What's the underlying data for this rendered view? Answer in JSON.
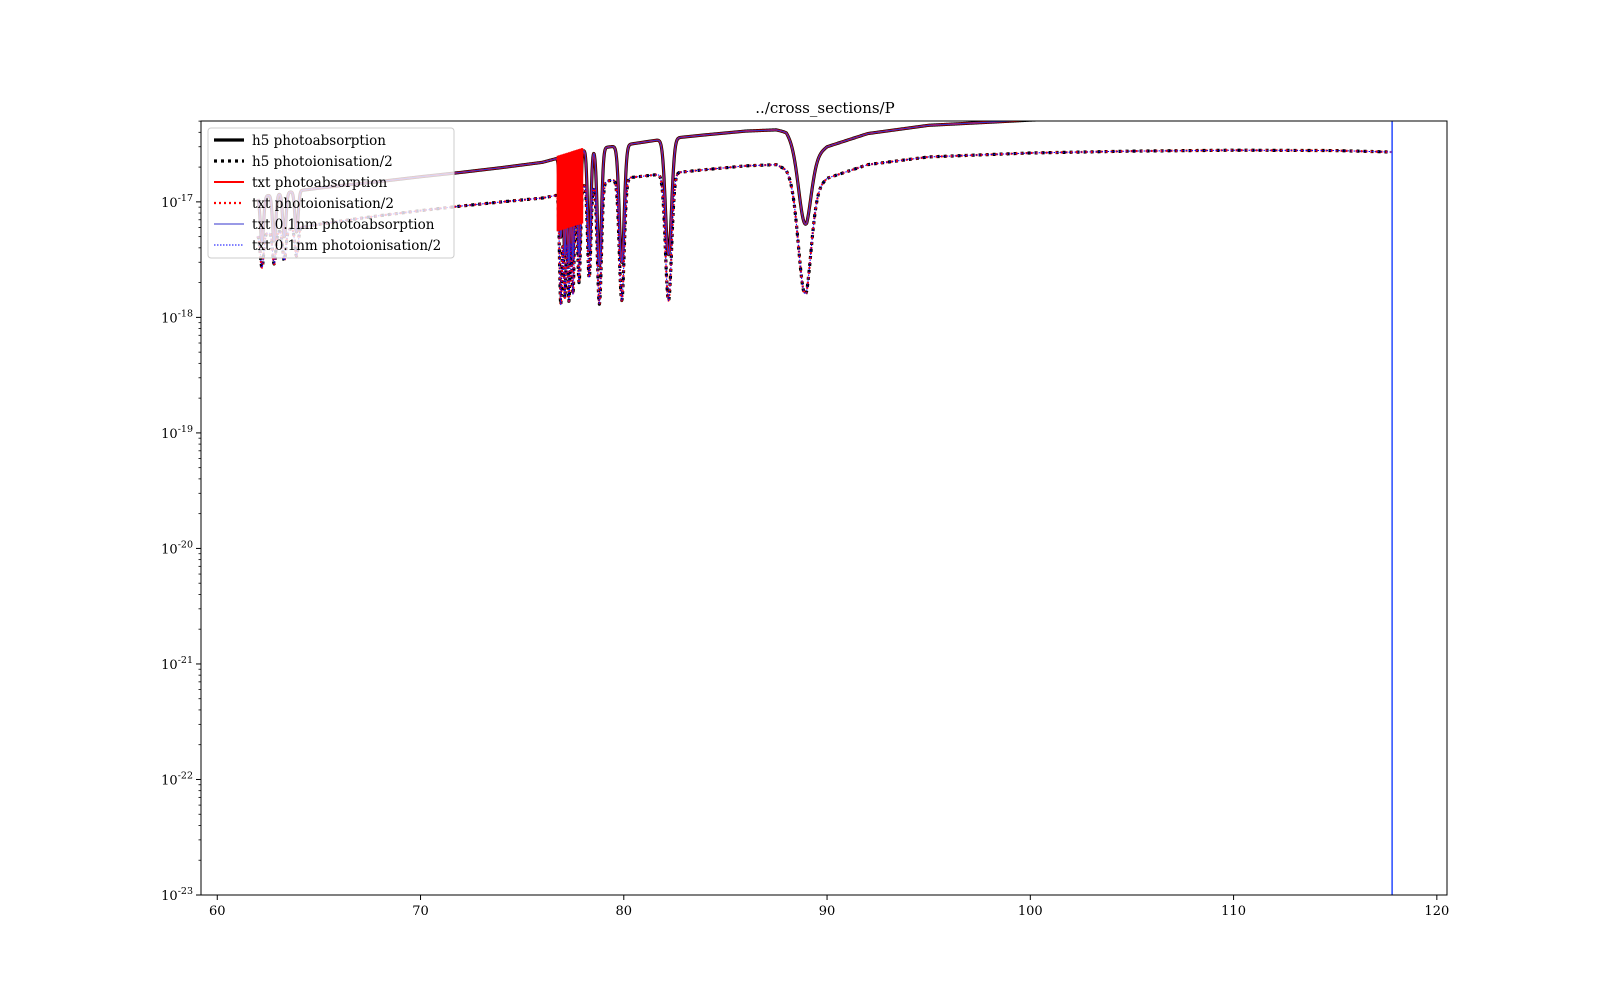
{
  "chart_data": {
    "type": "line",
    "title": "../cross_sections/P",
    "xlabel": "",
    "ylabel": "",
    "xlim": [
      59.2,
      120.5
    ],
    "ylim_log10": [
      -23,
      -16.3
    ],
    "yscale": "log",
    "grid": false,
    "legend_placement": "top-left",
    "x_ticks": [
      60,
      70,
      80,
      90,
      100,
      110,
      120
    ],
    "y_ticks": [
      {
        "base": "10",
        "exp": "-23",
        "log10": -23
      },
      {
        "base": "10",
        "exp": "-22",
        "log10": -22
      },
      {
        "base": "10",
        "exp": "-21",
        "log10": -21
      },
      {
        "base": "10",
        "exp": "-20",
        "log10": -20
      },
      {
        "base": "10",
        "exp": "-19",
        "log10": -19
      },
      {
        "base": "10",
        "exp": "-18",
        "log10": -18
      },
      {
        "base": "10",
        "exp": "-17",
        "log10": -17
      }
    ],
    "series": [
      {
        "name": "h5 photoabsorption",
        "color": "#000000",
        "style": "solid",
        "kind": "absorption"
      },
      {
        "name": "h5 photoionisation/2",
        "color": "#000000",
        "style": "dotted",
        "kind": "ionisation"
      },
      {
        "name": "txt photoabsorption",
        "color": "#ff0000",
        "style": "solid",
        "kind": "absorption"
      },
      {
        "name": "txt photoionisation/2",
        "color": "#ff0000",
        "style": "dotted",
        "kind": "ionisation"
      },
      {
        "name": "txt 0.1nm photoabsorption",
        "color": "#3333cc",
        "style": "solid",
        "kind": "absorption"
      },
      {
        "name": "txt 0.1nm photoionisation/2",
        "color": "#0000ff",
        "style": "dotted",
        "kind": "ionisation"
      }
    ],
    "absorption_base": {
      "x": [
        62,
        64,
        66,
        68,
        70,
        72,
        74,
        76,
        76.8,
        78,
        80,
        82,
        84,
        86,
        87.5,
        88,
        88.5,
        89,
        90,
        92,
        95,
        100,
        105,
        110,
        115,
        117.8
      ],
      "y": [
        1.1e-17,
        1.25e-17,
        1.38e-17,
        1.5e-17,
        1.65e-17,
        1.8e-17,
        1.98e-17,
        2.2e-17,
        2.4e-17,
        2.8e-17,
        3.1e-17,
        3.5e-17,
        3.8e-17,
        4.1e-17,
        4.2e-17,
        4e-17,
        3e-17,
        2.2e-17,
        3e-17,
        3.9e-17,
        4.6e-17,
        5.1e-17,
        5.45e-17,
        5.55e-17,
        5.5e-17,
        5.3e-17
      ]
    },
    "ionisation_base": {
      "x": [
        62,
        64,
        66,
        68,
        70,
        72,
        74,
        76,
        76.8,
        78,
        80,
        82,
        84,
        86,
        87.5,
        88,
        88.5,
        89,
        90,
        92,
        95,
        100,
        105,
        110,
        115,
        117.8
      ],
      "y": [
        5.2e-18,
        6e-18,
        6.8e-18,
        7.6e-18,
        8.4e-18,
        9.2e-18,
        1e-17,
        1.08e-17,
        1.15e-17,
        1.4e-17,
        1.6e-17,
        1.75e-17,
        1.9e-17,
        2.05e-17,
        2.1e-17,
        1.9e-17,
        1.4e-17,
        1.1e-17,
        1.6e-17,
        2.1e-17,
        2.45e-17,
        2.65e-17,
        2.75e-17,
        2.8e-17,
        2.78e-17,
        2.7e-17
      ]
    },
    "absorption_dips": [
      {
        "x": 62.2,
        "min": 4.5e-18,
        "w": 0.08
      },
      {
        "x": 62.8,
        "min": 4.6e-18,
        "w": 0.08
      },
      {
        "x": 63.3,
        "min": 5e-18,
        "w": 0.08
      },
      {
        "x": 63.9,
        "min": 5.5e-18,
        "w": 0.08
      },
      {
        "x": 76.9,
        "min": 5e-18,
        "w": 0.06
      },
      {
        "x": 77.1,
        "min": 3.5e-18,
        "w": 0.06
      },
      {
        "x": 77.3,
        "min": 3e-18,
        "w": 0.06
      },
      {
        "x": 77.5,
        "min": 3.2e-18,
        "w": 0.06
      },
      {
        "x": 77.8,
        "min": 3.5e-18,
        "w": 0.07
      },
      {
        "x": 78.3,
        "min": 3.8e-18,
        "w": 0.08
      },
      {
        "x": 78.8,
        "min": 2.8e-18,
        "w": 0.1
      },
      {
        "x": 79.9,
        "min": 3e-18,
        "w": 0.12
      },
      {
        "x": 82.2,
        "min": 3.5e-18,
        "w": 0.15
      },
      {
        "x": 88.9,
        "min": 6.5e-18,
        "w": 0.3
      }
    ],
    "ionisation_dips": [
      {
        "x": 62.2,
        "min": 2.7e-18,
        "w": 0.08
      },
      {
        "x": 62.8,
        "min": 2.9e-18,
        "w": 0.08
      },
      {
        "x": 63.3,
        "min": 3.1e-18,
        "w": 0.08
      },
      {
        "x": 63.9,
        "min": 3.4e-18,
        "w": 0.08
      },
      {
        "x": 76.9,
        "min": 1.3e-18,
        "w": 0.06
      },
      {
        "x": 77.1,
        "min": 1.5e-18,
        "w": 0.06
      },
      {
        "x": 77.3,
        "min": 1.4e-18,
        "w": 0.06
      },
      {
        "x": 77.5,
        "min": 1.6e-18,
        "w": 0.06
      },
      {
        "x": 77.8,
        "min": 2e-18,
        "w": 0.07
      },
      {
        "x": 78.3,
        "min": 2.2e-18,
        "w": 0.08
      },
      {
        "x": 78.8,
        "min": 1.3e-18,
        "w": 0.1
      },
      {
        "x": 79.9,
        "min": 1.4e-18,
        "w": 0.12
      },
      {
        "x": 82.2,
        "min": 1.4e-18,
        "w": 0.15
      },
      {
        "x": 88.9,
        "min": 1.6e-18,
        "w": 0.3
      }
    ],
    "blue_drop_x": 117.8
  }
}
